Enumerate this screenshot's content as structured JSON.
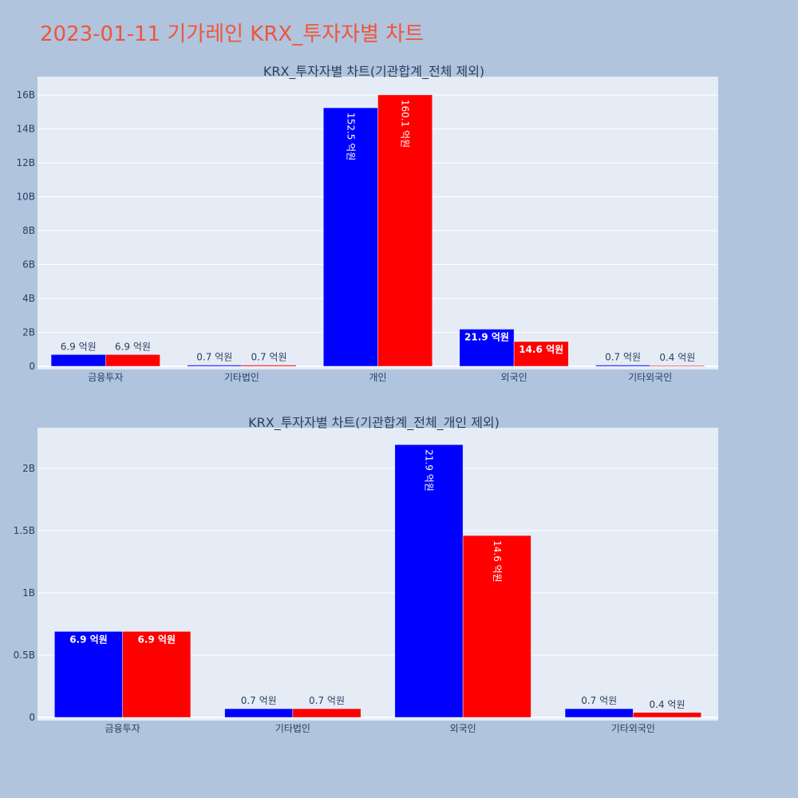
{
  "title": "2023-01-11 기가레인 KRX_투자자별 차트",
  "colors": {
    "buy": "#0000ff",
    "sell": "#ff0000",
    "plot_bg": "#e5ecf6",
    "page_bg": "#b0c4de",
    "title": "#ef553b"
  },
  "chart_data": [
    {
      "type": "bar",
      "title": "KRX_투자자별 차트(기관합계_전체 제외)",
      "categories": [
        "금융투자",
        "기타법인",
        "개인",
        "외국인",
        "기타외국인"
      ],
      "series": [
        {
          "values": [
            690000000,
            70000000,
            15250000000,
            2190000000,
            70000000
          ],
          "labels": [
            "6.9 억원",
            "0.7 억원",
            "152.5 억원",
            "21.9 억원",
            "0.7 억원"
          ]
        },
        {
          "values": [
            690000000,
            70000000,
            16010000000,
            1460000000,
            40000000
          ],
          "labels": [
            "6.9 억원",
            "0.7 억원",
            "160.1 억원",
            "14.6 억원",
            "0.4 억원"
          ]
        }
      ],
      "ylim": [
        0,
        16900000000
      ],
      "yticks": [
        0,
        2000000000,
        4000000000,
        6000000000,
        8000000000,
        10000000000,
        12000000000,
        14000000000,
        16000000000
      ],
      "ytick_labels": [
        "0",
        "2B",
        "4B",
        "6B",
        "8B",
        "10B",
        "12B",
        "14B",
        "16B"
      ],
      "grid": true
    },
    {
      "type": "bar",
      "title": "KRX_투자자별 차트(기관합계_전체_개인 제외)",
      "categories": [
        "금융투자",
        "기타법인",
        "외국인",
        "기타외국인"
      ],
      "series": [
        {
          "values": [
            690000000,
            70000000,
            2190000000,
            70000000
          ],
          "labels": [
            "6.9 억원",
            "0.7 억원",
            "21.9 억원",
            "0.7 억원"
          ]
        },
        {
          "values": [
            690000000,
            70000000,
            1460000000,
            40000000
          ],
          "labels": [
            "6.9 억원",
            "0.7 억원",
            "14.6 억원",
            "0.4 억원"
          ]
        }
      ],
      "ylim": [
        0,
        2300000000
      ],
      "yticks": [
        0,
        500000000,
        1000000000,
        1500000000,
        2000000000
      ],
      "ytick_labels": [
        "0",
        "0.5B",
        "1B",
        "1.5B",
        "2B"
      ],
      "grid": true
    }
  ]
}
